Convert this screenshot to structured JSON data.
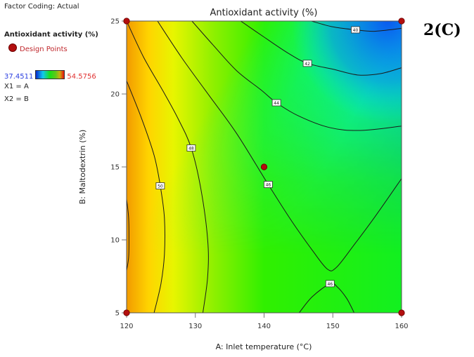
{
  "legend": {
    "factor_coding": "Factor Coding: Actual",
    "response": "Antioxidant activity (%)",
    "design_points": "Design Points",
    "scale_min": "37.4511",
    "scale_max": "54.5756",
    "x1": "X1 = A",
    "x2": "X2 = B"
  },
  "figure_tag": "2(C)",
  "chart_data": {
    "type": "contour",
    "title": "Antioxidant activity (%)",
    "xlabel": "A: Inlet temperature (°C)",
    "ylabel": "B: Maltodextrin (%)",
    "xlim": [
      120,
      160
    ],
    "ylim": [
      5,
      25
    ],
    "xticks": [
      "120",
      "130",
      "140",
      "150",
      "160"
    ],
    "yticks": [
      "5",
      "10",
      "15",
      "20",
      "25"
    ],
    "grid": false,
    "colors": {
      "low": "#0a5af0",
      "mid": "#18e818",
      "high": "#f08a00",
      "design_point": "#b30f0f"
    },
    "design_points": [
      {
        "x": 120,
        "y": 25
      },
      {
        "x": 160,
        "y": 25
      },
      {
        "x": 140,
        "y": 15
      },
      {
        "x": 120,
        "y": 5
      },
      {
        "x": 160,
        "y": 5
      }
    ],
    "contours": [
      {
        "level": "40",
        "label_at": {
          "x": 153.3,
          "y": 24.4
        },
        "points": [
          [
            146.9,
            25
          ],
          [
            150,
            24.6
          ],
          [
            153.3,
            24.4
          ],
          [
            156,
            24.3
          ],
          [
            160,
            24.5
          ]
        ]
      },
      {
        "level": "42",
        "label_at": {
          "x": 146.3,
          "y": 22.1
        },
        "points": [
          [
            136.6,
            25
          ],
          [
            140,
            23.9
          ],
          [
            143.5,
            22.8
          ],
          [
            146.3,
            22.1
          ],
          [
            150,
            21.7
          ],
          [
            153.7,
            21.3
          ],
          [
            157,
            21.4
          ],
          [
            160,
            21.8
          ]
        ]
      },
      {
        "level": "44",
        "label_at": {
          "x": 141.8,
          "y": 19.4
        },
        "points": [
          [
            129.5,
            25
          ],
          [
            132.5,
            23.4
          ],
          [
            136,
            21.6
          ],
          [
            139.5,
            20.3
          ],
          [
            141.8,
            19.4
          ],
          [
            145,
            18.5
          ],
          [
            149.5,
            17.7
          ],
          [
            154,
            17.5
          ],
          [
            160,
            17.8
          ]
        ]
      },
      {
        "level": "46",
        "label_at": {
          "x": 140.6,
          "y": 13.8
        },
        "points": [
          [
            124.5,
            25
          ],
          [
            128,
            22.5
          ],
          [
            132,
            19.9
          ],
          [
            136,
            17.3
          ],
          [
            140.6,
            13.8
          ],
          [
            144,
            11.3
          ],
          [
            147,
            9.3
          ],
          [
            149.2,
            8.0
          ],
          [
            150.5,
            8.1
          ],
          [
            153,
            9.6
          ],
          [
            156,
            11.5
          ],
          [
            160,
            14.2
          ]
        ]
      },
      {
        "level": "46",
        "label_at": {
          "x": 149.6,
          "y": 7.0
        },
        "points": [
          [
            145.1,
            5
          ],
          [
            147,
            6.1
          ],
          [
            149.6,
            7.0
          ],
          [
            150.6,
            6.8
          ],
          [
            152,
            6.0
          ],
          [
            153.1,
            5
          ]
        ]
      },
      {
        "level": "48",
        "label_at": {
          "x": 129.4,
          "y": 16.3
        },
        "points": [
          [
            120,
            25
          ],
          [
            122.5,
            22.5
          ],
          [
            125.3,
            20.2
          ],
          [
            127.5,
            18.3
          ],
          [
            129.4,
            16.3
          ],
          [
            130.8,
            13.5
          ],
          [
            131.8,
            10.0
          ],
          [
            131.8,
            7.5
          ],
          [
            131.1,
            5
          ]
        ]
      },
      {
        "level": "50",
        "label_at": {
          "x": 124.9,
          "y": 13.7
        },
        "points": [
          [
            120,
            20.9
          ],
          [
            122.2,
            18.3
          ],
          [
            124.0,
            15.8
          ],
          [
            124.9,
            13.7
          ],
          [
            125.5,
            11.5
          ],
          [
            125.5,
            9.0
          ],
          [
            125.0,
            7.0
          ],
          [
            124.0,
            5
          ]
        ]
      },
      {
        "level": "52",
        "label_at": null,
        "points": [
          [
            120,
            12.8
          ],
          [
            120.3,
            11.5
          ],
          [
            120.35,
            10.0
          ],
          [
            120.3,
            8.8
          ],
          [
            120,
            7.9
          ]
        ]
      }
    ]
  }
}
